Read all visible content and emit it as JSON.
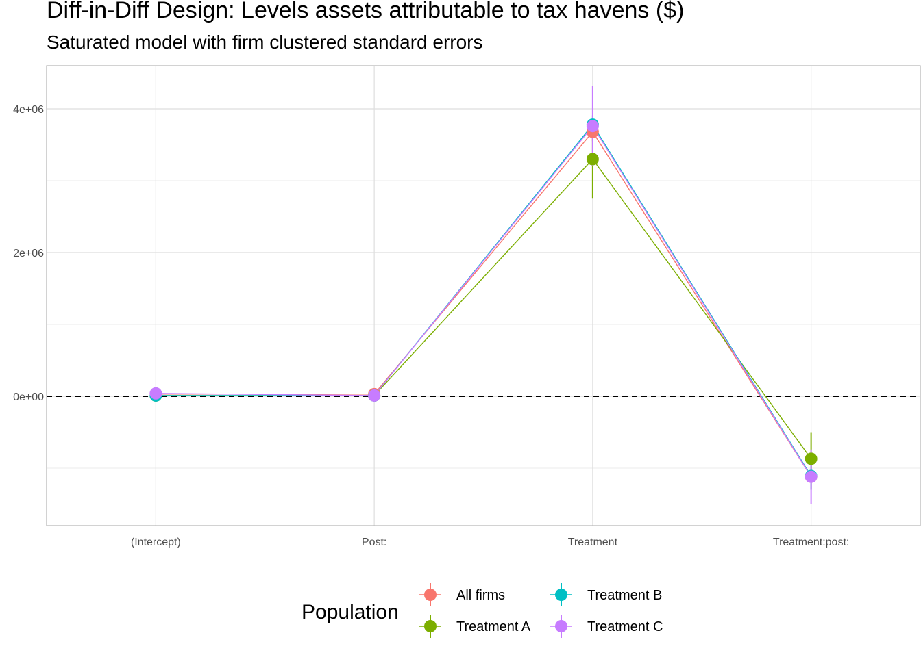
{
  "chart_data": {
    "type": "line",
    "title": "Diff-in-Diff Design: Levels assets attributable to tax havens  ($)",
    "subtitle": "Saturated model with firm clustered standard errors",
    "xlabel": "",
    "ylabel": "",
    "categories": [
      "(Intercept)",
      "Post:",
      "Treatment",
      "Treatment:post:"
    ],
    "y_ticks": [
      {
        "value": 0,
        "label": "0e+00"
      },
      {
        "value": 2000000,
        "label": "2e+06"
      },
      {
        "value": 4000000,
        "label": "4e+06"
      }
    ],
    "ylim": [
      -1800000,
      4600000
    ],
    "reference_line": {
      "value": 0,
      "style": "dashed"
    },
    "grid": true,
    "legend": {
      "title": "Population",
      "position": "bottom"
    },
    "series": [
      {
        "name": "All firms",
        "color": "#F8766D",
        "values": [
          30000,
          30000,
          3680000,
          -1120000
        ],
        "lower": [
          0,
          0,
          3550000,
          -1300000
        ],
        "upper": [
          60000,
          60000,
          3810000,
          -940000
        ]
      },
      {
        "name": "Treatment A",
        "color": "#7CAE00",
        "values": [
          10000,
          10000,
          3300000,
          -870000
        ],
        "lower": [
          -10000,
          -10000,
          2750000,
          -1060000
        ],
        "upper": [
          30000,
          30000,
          3850000,
          -500000
        ]
      },
      {
        "name": "Treatment B",
        "color": "#00BFC4",
        "values": [
          10000,
          10000,
          3780000,
          -1110000
        ],
        "lower": [
          -10000,
          -10000,
          3650000,
          -1300000
        ],
        "upper": [
          30000,
          30000,
          3910000,
          -920000
        ]
      },
      {
        "name": "Treatment C",
        "color": "#C77CFF",
        "values": [
          40000,
          10000,
          3760000,
          -1120000
        ],
        "lower": [
          20000,
          -10000,
          3200000,
          -1500000
        ],
        "upper": [
          60000,
          30000,
          4320000,
          -740000
        ]
      }
    ]
  }
}
